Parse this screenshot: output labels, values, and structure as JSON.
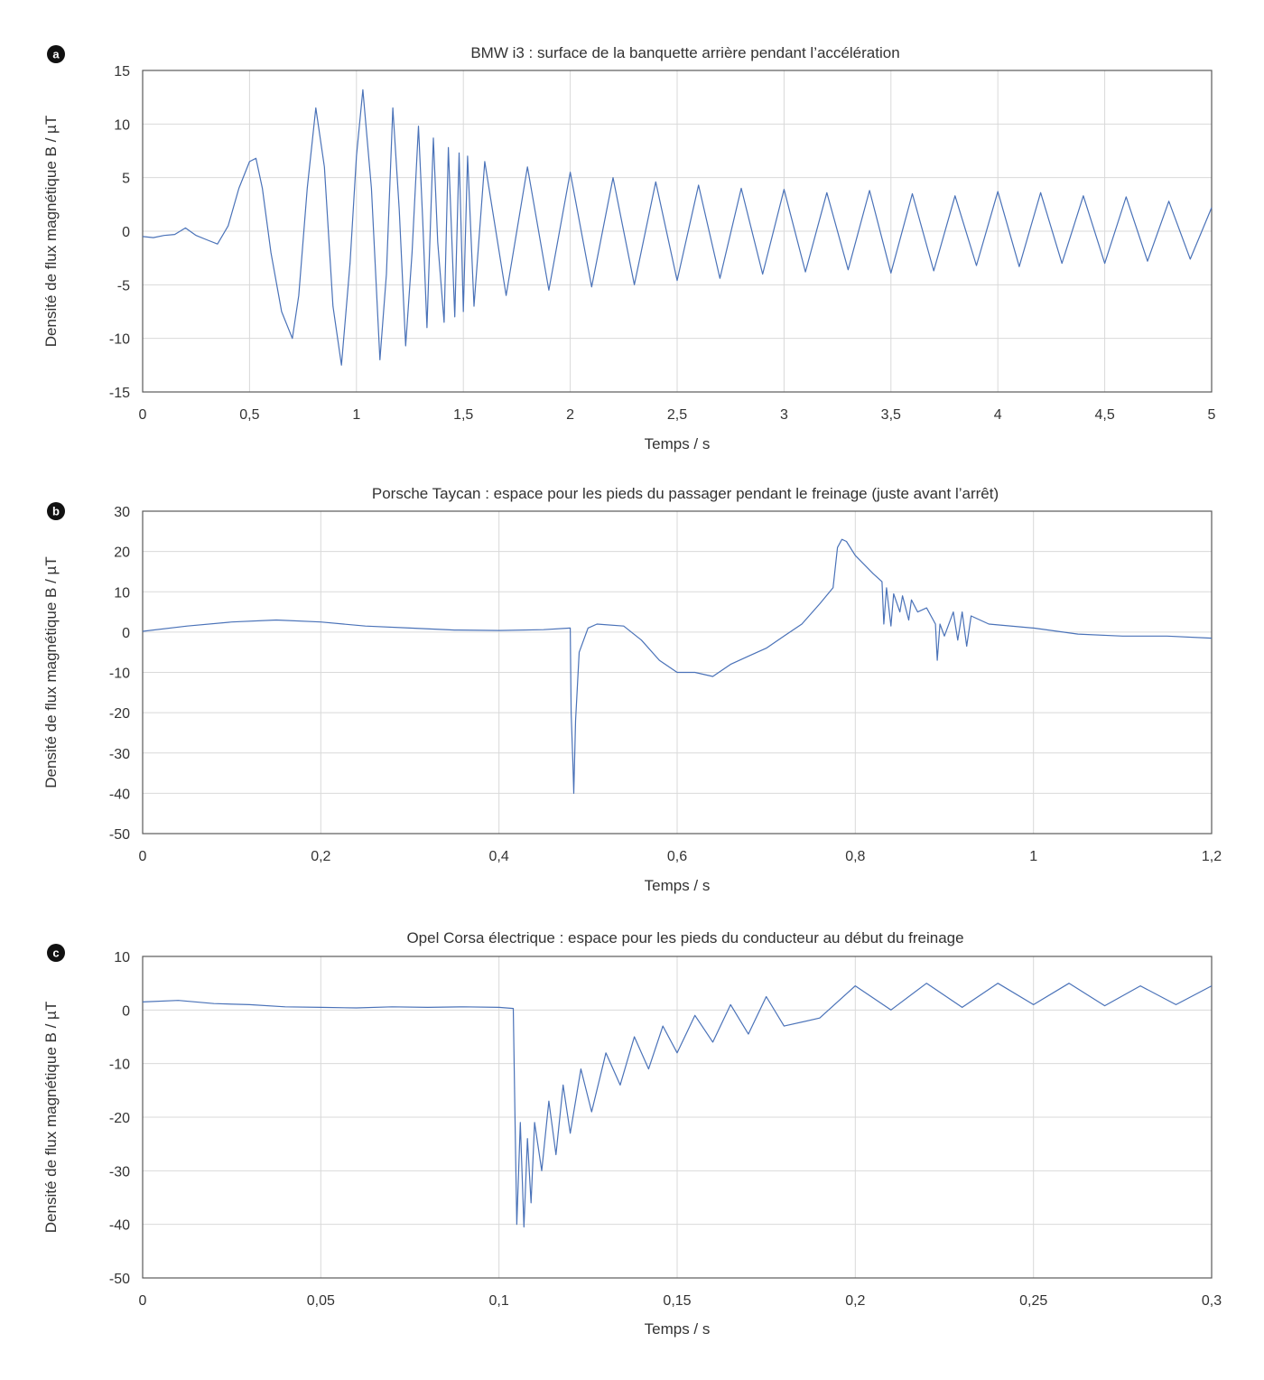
{
  "colors": {
    "series": "#4a72b8",
    "grid": "#d9d9d9",
    "frame": "#595959",
    "text": "#333333"
  },
  "chart_data": [
    {
      "id": "a",
      "type": "line",
      "panel_label": "a",
      "title": "BMW i3 : surface de la banquette arrière pendant l’accélération",
      "xlabel": "Temps / s",
      "ylabel": "Densité de flux magnétique B / µT",
      "xlim": [
        0,
        5
      ],
      "ylim": [
        -15,
        15
      ],
      "xticks": [
        0,
        0.5,
        1,
        1.5,
        2,
        2.5,
        3,
        3.5,
        4,
        4.5,
        5
      ],
      "xtick_labels": [
        "0",
        "0,5",
        "1",
        "1,5",
        "2",
        "2,5",
        "3",
        "3,5",
        "4",
        "4,5",
        "5"
      ],
      "yticks": [
        -15,
        -10,
        -5,
        0,
        5,
        10,
        15
      ],
      "ytick_labels": [
        "-15",
        "-10",
        "-5",
        "0",
        "5",
        "10",
        "15"
      ],
      "grid": true,
      "series": [
        {
          "name": "B",
          "x": [
            0,
            0.05,
            0.1,
            0.15,
            0.2,
            0.25,
            0.3,
            0.35,
            0.4,
            0.45,
            0.5,
            0.53,
            0.56,
            0.6,
            0.65,
            0.7,
            0.73,
            0.77,
            0.81,
            0.85,
            0.89,
            0.93,
            0.97,
            1.0,
            1.03,
            1.07,
            1.11,
            1.14,
            1.17,
            1.2,
            1.23,
            1.26,
            1.29,
            1.31,
            1.33,
            1.36,
            1.38,
            1.41,
            1.43,
            1.46,
            1.48,
            1.5,
            1.52,
            1.55,
            1.6,
            1.7,
            1.8,
            1.9,
            2.0,
            2.1,
            2.2,
            2.3,
            2.4,
            2.5,
            2.6,
            2.7,
            2.8,
            2.9,
            3.0,
            3.1,
            3.2,
            3.3,
            3.4,
            3.5,
            3.6,
            3.7,
            3.8,
            3.9,
            4.0,
            4.1,
            4.2,
            4.3,
            4.4,
            4.5,
            4.6,
            4.7,
            4.8,
            4.9,
            5.0
          ],
          "y": [
            -0.5,
            -0.6,
            -0.4,
            -0.3,
            0.3,
            -0.4,
            -0.8,
            -1.2,
            0.5,
            4.0,
            6.5,
            6.8,
            4.0,
            -2.0,
            -7.5,
            -10.0,
            -6.0,
            4.0,
            11.5,
            6.0,
            -7.0,
            -12.5,
            -3.0,
            7.0,
            13.2,
            4.0,
            -12.0,
            -4.0,
            11.5,
            2.0,
            -10.7,
            -2.0,
            9.8,
            1.0,
            -9.0,
            8.7,
            -1.0,
            -8.5,
            7.8,
            -8.0,
            7.3,
            -7.5,
            7.0,
            -7.0,
            6.5,
            -6.0,
            6.0,
            -5.5,
            5.5,
            -5.2,
            5.0,
            -5.0,
            4.6,
            -4.6,
            4.3,
            -4.4,
            4.0,
            -4.0,
            3.9,
            -3.8,
            3.6,
            -3.6,
            3.8,
            -3.9,
            3.5,
            -3.7,
            3.3,
            -3.2,
            3.7,
            -3.3,
            3.6,
            -3.0,
            3.3,
            -3.0,
            3.2,
            -2.8,
            2.8,
            -2.6,
            2.2
          ]
        }
      ]
    },
    {
      "id": "b",
      "type": "line",
      "panel_label": "b",
      "title": "Porsche Taycan : espace pour les pieds du passager pendant le freinage (juste avant l’arrêt)",
      "xlabel": "Temps / s",
      "ylabel": "Densité de flux magnétique B / µT",
      "xlim": [
        0,
        1.2
      ],
      "ylim": [
        -50,
        30
      ],
      "xticks": [
        0,
        0.2,
        0.4,
        0.6,
        0.8,
        1,
        1.2
      ],
      "xtick_labels": [
        "0",
        "0,2",
        "0,4",
        "0,6",
        "0,8",
        "1",
        "1,2"
      ],
      "yticks": [
        -50,
        -40,
        -30,
        -20,
        -10,
        0,
        10,
        20,
        30
      ],
      "ytick_labels": [
        "-50",
        "-40",
        "-30",
        "-20",
        "-10",
        "0",
        "10",
        "20",
        "30"
      ],
      "grid": true,
      "series": [
        {
          "name": "B",
          "x": [
            0,
            0.05,
            0.1,
            0.15,
            0.2,
            0.25,
            0.3,
            0.35,
            0.4,
            0.45,
            0.48,
            0.481,
            0.483,
            0.484,
            0.486,
            0.49,
            0.5,
            0.51,
            0.54,
            0.56,
            0.58,
            0.6,
            0.62,
            0.64,
            0.66,
            0.68,
            0.7,
            0.72,
            0.74,
            0.76,
            0.775,
            0.78,
            0.785,
            0.79,
            0.8,
            0.82,
            0.83,
            0.832,
            0.835,
            0.84,
            0.843,
            0.85,
            0.853,
            0.86,
            0.863,
            0.87,
            0.88,
            0.89,
            0.892,
            0.895,
            0.9,
            0.91,
            0.915,
            0.92,
            0.925,
            0.93,
            0.95,
            1.0,
            1.05,
            1.1,
            1.15,
            1.2
          ],
          "y": [
            0.2,
            1.5,
            2.5,
            3.0,
            2.5,
            1.5,
            1.0,
            0.5,
            0.4,
            0.6,
            1.0,
            -20.0,
            -33.0,
            -40.0,
            -22.0,
            -5.0,
            1.0,
            2.0,
            1.5,
            -2.0,
            -7.0,
            -10.0,
            -10.0,
            -11.0,
            -8.0,
            -6.0,
            -4.0,
            -1.0,
            2.0,
            7.0,
            11.0,
            21.0,
            23.0,
            22.5,
            19.0,
            14.5,
            12.5,
            2.0,
            11.0,
            1.5,
            9.5,
            5.0,
            9.0,
            3.0,
            8.0,
            5.0,
            6.0,
            2.0,
            -7.0,
            2.0,
            -1.0,
            5.0,
            -2.0,
            5.0,
            -3.5,
            4.0,
            2.0,
            1.0,
            -0.5,
            -1.0,
            -1.0,
            -1.5
          ]
        }
      ]
    },
    {
      "id": "c",
      "type": "line",
      "panel_label": "c",
      "title": "Opel Corsa électrique : espace pour les pieds du conducteur au début du freinage",
      "xlabel": "Temps / s",
      "ylabel": "Densité de flux magnétique B / µT",
      "xlim": [
        0,
        0.3
      ],
      "ylim": [
        -50,
        10
      ],
      "xticks": [
        0,
        0.05,
        0.1,
        0.15,
        0.2,
        0.25,
        0.3
      ],
      "xtick_labels": [
        "0",
        "0,05",
        "0,1",
        "0,15",
        "0,2",
        "0,25",
        "0,3"
      ],
      "yticks": [
        -50,
        -40,
        -30,
        -20,
        -10,
        0,
        10
      ],
      "ytick_labels": [
        "-50",
        "-40",
        "-30",
        "-20",
        "-10",
        "0",
        "10"
      ],
      "grid": true,
      "series": [
        {
          "name": "B",
          "x": [
            0,
            0.01,
            0.02,
            0.03,
            0.04,
            0.05,
            0.06,
            0.07,
            0.08,
            0.09,
            0.1,
            0.104,
            0.1045,
            0.105,
            0.106,
            0.107,
            0.108,
            0.109,
            0.11,
            0.112,
            0.114,
            0.116,
            0.118,
            0.12,
            0.123,
            0.126,
            0.13,
            0.134,
            0.138,
            0.142,
            0.146,
            0.15,
            0.155,
            0.16,
            0.165,
            0.17,
            0.175,
            0.18,
            0.19,
            0.2,
            0.21,
            0.22,
            0.23,
            0.24,
            0.25,
            0.26,
            0.27,
            0.28,
            0.29,
            0.3
          ],
          "y": [
            1.5,
            1.8,
            1.2,
            1.0,
            0.6,
            0.5,
            0.4,
            0.6,
            0.5,
            0.6,
            0.5,
            0.3,
            -20.0,
            -40.0,
            -21.0,
            -40.5,
            -24.0,
            -36.0,
            -21.0,
            -30.0,
            -17.0,
            -27.0,
            -14.0,
            -23.0,
            -11.0,
            -19.0,
            -8.0,
            -14.0,
            -5.0,
            -11.0,
            -3.0,
            -8.0,
            -1.0,
            -6.0,
            1.0,
            -4.5,
            2.5,
            -3.0,
            -1.5,
            4.5,
            0.0,
            5.0,
            0.5,
            5.0,
            1.0,
            5.0,
            0.8,
            4.5,
            1.0,
            4.5
          ]
        }
      ]
    }
  ]
}
